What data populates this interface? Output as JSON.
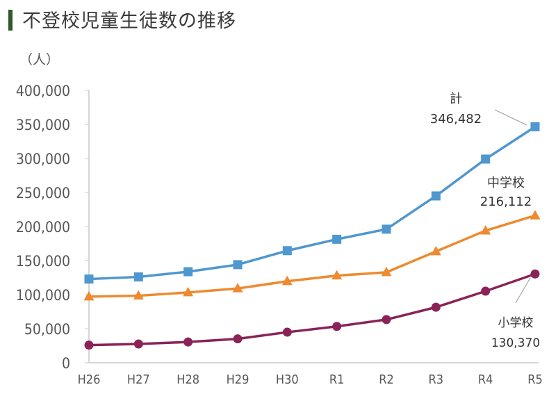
{
  "title": "不登校児童生徒数の推移",
  "colors": {
    "title_bar": "#2e5a2a",
    "total": "#4f97cf",
    "junior_high": "#ee8a2f",
    "elementary": "#8a2357",
    "axis": "#c8c8c8",
    "callout": "#9a9a9a"
  },
  "chart_data": {
    "type": "line",
    "title": "不登校児童生徒数の推移",
    "ylabel": "（人）",
    "xlabel": "",
    "ylim": [
      0,
      400000
    ],
    "yticks": [
      0,
      50000,
      100000,
      150000,
      200000,
      250000,
      300000,
      350000,
      400000
    ],
    "ytick_labels": [
      "0",
      "50,000",
      "100,000",
      "150,000",
      "200,000",
      "250,000",
      "300,000",
      "350,000",
      "400,000"
    ],
    "grid": false,
    "categories": [
      "H26",
      "H27",
      "H28",
      "H29",
      "H30",
      "R1",
      "R2",
      "R3",
      "R4",
      "R5"
    ],
    "series": [
      {
        "name": "計",
        "key": "total",
        "marker": "square",
        "values": [
          122897,
          125991,
          133683,
          144031,
          164528,
          181272,
          196127,
          244940,
          299048,
          346482
        ],
        "annotation": {
          "label": "計",
          "value": "346,482"
        }
      },
      {
        "name": "中学校",
        "key": "junior_high",
        "marker": "triangle",
        "values": [
          97033,
          98408,
          103235,
          108999,
          119687,
          127922,
          132777,
          163442,
          193936,
          216112
        ],
        "annotation": {
          "label": "中学校",
          "value": "216,112"
        }
      },
      {
        "name": "小学校",
        "key": "elementary",
        "marker": "circle",
        "values": [
          25864,
          27583,
          30448,
          35032,
          44841,
          53350,
          63350,
          81498,
          105112,
          130370
        ],
        "annotation": {
          "label": "小学校",
          "value": "130,370"
        }
      }
    ]
  }
}
